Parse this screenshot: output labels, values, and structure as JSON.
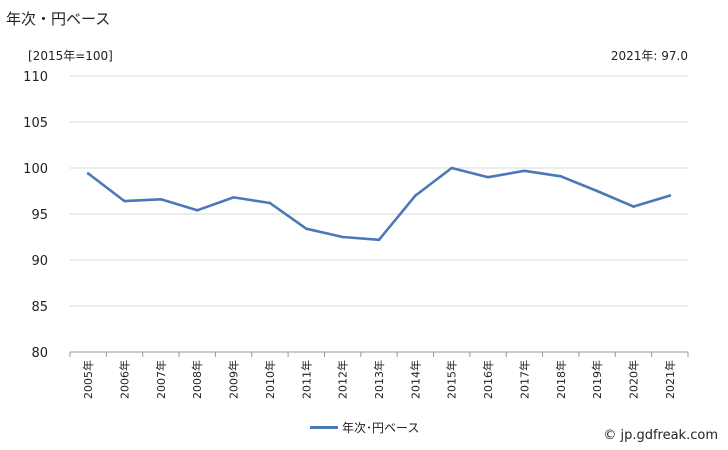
{
  "header": {
    "title": "年次・円ベース",
    "unit_note": "[2015年=100]",
    "latest_note": "2021年: 97.0"
  },
  "credit": "© jp.gdfreak.com",
  "chart_data": {
    "type": "line",
    "categories": [
      "2005年",
      "2006年",
      "2007年",
      "2008年",
      "2009年",
      "2010年",
      "2011年",
      "2012年",
      "2013年",
      "2014年",
      "2015年",
      "2016年",
      "2017年",
      "2018年",
      "2019年",
      "2020年",
      "2021年"
    ],
    "series": [
      {
        "name": "年次･円ベース",
        "color": "#4a78b8",
        "values": [
          99.4,
          96.4,
          96.6,
          95.4,
          96.8,
          96.2,
          93.4,
          92.5,
          92.2,
          97.0,
          100.0,
          99.0,
          99.7,
          99.1,
          97.5,
          95.8,
          97.0
        ]
      }
    ],
    "ylim": [
      80,
      110
    ],
    "yticks": [
      80,
      85,
      90,
      95,
      100,
      105,
      110
    ],
    "grid": true,
    "legend": "bottom"
  }
}
